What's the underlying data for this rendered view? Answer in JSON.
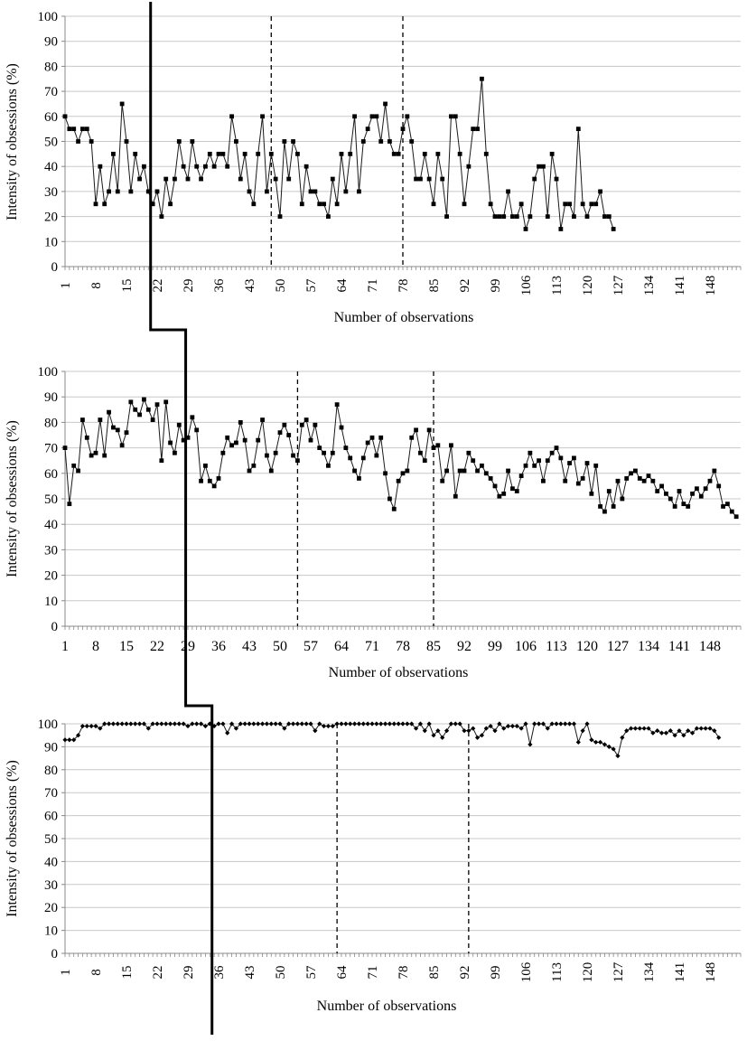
{
  "chart_data": [
    {
      "type": "line",
      "title": "",
      "xlabel": "Number of observations",
      "ylabel": "Intensity of obsessions (%)",
      "ylim": [
        0,
        100
      ],
      "xlim": [
        1,
        155
      ],
      "yticks": [
        0,
        10,
        20,
        30,
        40,
        50,
        60,
        70,
        80,
        90,
        100
      ],
      "xtick_labels": [
        "1",
        "8",
        "15",
        "22",
        "29",
        "36",
        "43",
        "50",
        "57",
        "64",
        "71",
        "78",
        "85",
        "92",
        "99",
        "106",
        "113",
        "120",
        "127",
        "134",
        "141",
        "148"
      ],
      "grid": true,
      "marker": "square",
      "phase_lines_x": [
        48,
        78
      ],
      "baseline_end_x": 20.5,
      "series": [
        {
          "values": [
            60,
            55,
            55,
            50,
            55,
            55,
            50,
            25,
            40,
            25,
            30,
            45,
            30,
            65,
            50,
            30,
            45,
            35,
            40,
            30,
            25,
            30,
            20,
            35,
            25,
            35,
            50,
            40,
            35,
            50,
            40,
            35,
            40,
            45,
            40,
            45,
            45,
            40,
            60,
            50,
            35,
            45,
            30,
            25,
            45,
            60,
            30,
            45,
            35,
            20,
            50,
            35,
            50,
            45,
            25,
            40,
            30,
            30,
            25,
            25,
            20,
            35,
            25,
            45,
            30,
            45,
            60,
            30,
            50,
            55,
            60,
            60,
            50,
            65,
            50,
            45,
            45,
            55,
            60,
            50,
            35,
            35,
            45,
            35,
            25,
            45,
            35,
            20,
            60,
            60,
            45,
            25,
            40,
            55,
            55,
            75,
            45,
            25,
            20,
            20,
            20,
            30,
            20,
            20,
            25,
            15,
            20,
            35,
            40,
            40,
            20,
            45,
            35,
            15,
            25,
            25,
            20,
            55,
            25,
            20,
            25,
            25,
            30,
            20,
            20,
            15
          ]
        }
      ]
    },
    {
      "type": "line",
      "title": "",
      "xlabel": "Number of observations",
      "ylabel": "Intensity of obsessions (%)",
      "ylim": [
        0,
        100
      ],
      "xlim": [
        1,
        155
      ],
      "yticks": [
        0,
        10,
        20,
        30,
        40,
        50,
        60,
        70,
        80,
        90,
        100
      ],
      "xtick_labels": [
        "1",
        "8",
        "15",
        "22",
        "29",
        "36",
        "43",
        "50",
        "57",
        "64",
        "71",
        "78",
        "85",
        "92",
        "99",
        "106",
        "113",
        "120",
        "127",
        "134",
        "141",
        "148"
      ],
      "grid": true,
      "marker": "square",
      "phase_lines_x": [
        54,
        85
      ],
      "baseline_end_x": 28.5,
      "series": [
        {
          "values": [
            70,
            48,
            63,
            61,
            81,
            74,
            67,
            68,
            81,
            67,
            84,
            78,
            77,
            71,
            76,
            88,
            85,
            83,
            89,
            85,
            81,
            87,
            65,
            88,
            72,
            68,
            79,
            73,
            74,
            82,
            77,
            57,
            63,
            57,
            55,
            58,
            68,
            74,
            71,
            72,
            80,
            73,
            61,
            63,
            73,
            81,
            67,
            61,
            68,
            76,
            79,
            75,
            67,
            65,
            79,
            81,
            73,
            79,
            70,
            68,
            63,
            68,
            87,
            78,
            70,
            66,
            61,
            58,
            66,
            72,
            74,
            67,
            74,
            60,
            50,
            46,
            57,
            60,
            61,
            74,
            77,
            68,
            65,
            77,
            70,
            71,
            57,
            61,
            71,
            51,
            61,
            61,
            68,
            65,
            61,
            63,
            60,
            58,
            55,
            51,
            52,
            61,
            54,
            53,
            59,
            63,
            68,
            63,
            65,
            57,
            65,
            68,
            70,
            66,
            57,
            64,
            66,
            56,
            58,
            64,
            52,
            63,
            47,
            45,
            53,
            47,
            57,
            50,
            58,
            60,
            61,
            58,
            57,
            59,
            57,
            53,
            55,
            52,
            50,
            47,
            53,
            48,
            47,
            52,
            54,
            51,
            54,
            57,
            61,
            55,
            47,
            48,
            45,
            43
          ]
        }
      ]
    },
    {
      "type": "line",
      "title": "",
      "xlabel": "Number of observations",
      "ylabel": "Intensity of obsessions  (%)",
      "ylim": [
        0,
        100
      ],
      "xlim": [
        1,
        155
      ],
      "yticks": [
        0,
        10,
        20,
        30,
        40,
        50,
        60,
        70,
        80,
        90,
        100
      ],
      "xtick_labels": [
        "1",
        "8",
        "15",
        "22",
        "29",
        "36",
        "43",
        "50",
        "57",
        "64",
        "71",
        "78",
        "85",
        "92",
        "99",
        "106",
        "113",
        "120",
        "127",
        "134",
        "141",
        "148"
      ],
      "grid": true,
      "marker": "diamond",
      "phase_lines_x": [
        63,
        93
      ],
      "baseline_end_x": 34.5,
      "series": [
        {
          "values": [
            93,
            93,
            93,
            95,
            99,
            99,
            99,
            99,
            98,
            100,
            100,
            100,
            100,
            100,
            100,
            100,
            100,
            100,
            100,
            98,
            100,
            100,
            100,
            100,
            100,
            100,
            100,
            100,
            99,
            100,
            100,
            100,
            99,
            100,
            99,
            100,
            100,
            96,
            100,
            98,
            100,
            100,
            100,
            100,
            100,
            100,
            100,
            100,
            100,
            100,
            98,
            100,
            100,
            100,
            100,
            100,
            100,
            97,
            100,
            99,
            99,
            99,
            100,
            100,
            100,
            100,
            100,
            100,
            100,
            100,
            100,
            100,
            100,
            100,
            100,
            100,
            100,
            100,
            100,
            100,
            98,
            100,
            97,
            100,
            95,
            97,
            94,
            97,
            100,
            100,
            100,
            97,
            97,
            98,
            94,
            95,
            98,
            99,
            97,
            100,
            98,
            99,
            99,
            99,
            98,
            100,
            91,
            100,
            100,
            100,
            98,
            100,
            100,
            100,
            100,
            100,
            100,
            92,
            97,
            100,
            93,
            92,
            92,
            91,
            90,
            89,
            86,
            94,
            97,
            98,
            98,
            98,
            98,
            98,
            96,
            97,
            96,
            96,
            97,
            95,
            97,
            95,
            97,
            96,
            98,
            98,
            98,
            98,
            97,
            94
          ]
        }
      ]
    }
  ]
}
